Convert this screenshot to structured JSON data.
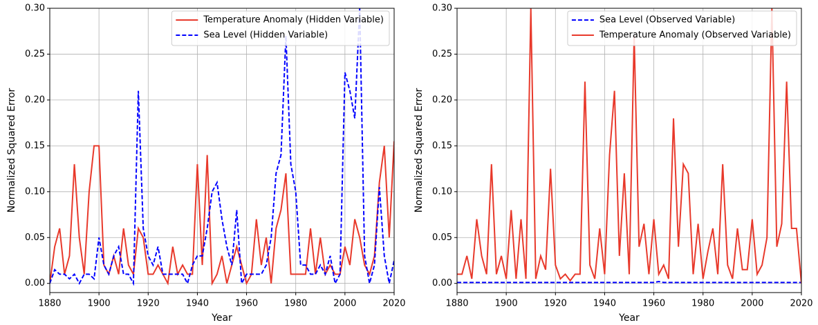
{
  "chart_data": [
    {
      "type": "line",
      "xlabel": "Year",
      "ylabel": "Normalized Squared Error",
      "x": [
        1880,
        1882,
        1884,
        1886,
        1888,
        1890,
        1892,
        1894,
        1896,
        1898,
        1900,
        1902,
        1904,
        1906,
        1908,
        1910,
        1912,
        1914,
        1916,
        1918,
        1920,
        1922,
        1924,
        1926,
        1928,
        1930,
        1932,
        1934,
        1936,
        1938,
        1940,
        1942,
        1944,
        1946,
        1948,
        1950,
        1952,
        1954,
        1956,
        1958,
        1960,
        1962,
        1964,
        1966,
        1968,
        1970,
        1972,
        1974,
        1976,
        1978,
        1980,
        1982,
        1984,
        1986,
        1988,
        1990,
        1992,
        1994,
        1996,
        1998,
        2000,
        2002,
        2004,
        2006,
        2008,
        2010,
        2012,
        2014,
        2016,
        2018,
        2020
      ],
      "xlim": [
        1880,
        2020
      ],
      "xticks": [
        1880,
        1900,
        1920,
        1940,
        1960,
        1980,
        2000,
        2020
      ],
      "ylim": [
        -0.01,
        0.3
      ],
      "yticks": [
        {
          "value": 0,
          "label": "0.00"
        },
        {
          "value": 0.05,
          "label": "0.05"
        },
        {
          "value": 0.1,
          "label": "0.10"
        },
        {
          "value": 0.15,
          "label": "0.15"
        },
        {
          "value": 0.2,
          "label": "0.20"
        },
        {
          "value": 0.25,
          "label": "0.25"
        },
        {
          "value": 0.3,
          "label": "0.30"
        }
      ],
      "grid": true,
      "legend": "upper right",
      "series": [
        {
          "name": "Temperature Anomaly (Hidden Variable)",
          "color": "#e8392b",
          "style": "solid",
          "values": [
            0.0,
            0.04,
            0.06,
            0.01,
            0.03,
            0.13,
            0.05,
            0.01,
            0.1,
            0.15,
            0.15,
            0.02,
            0.01,
            0.03,
            0.01,
            0.06,
            0.02,
            0.01,
            0.06,
            0.05,
            0.01,
            0.01,
            0.02,
            0.01,
            0.0,
            0.04,
            0.01,
            0.02,
            0.01,
            0.01,
            0.13,
            0.02,
            0.14,
            0.0,
            0.01,
            0.03,
            0.0,
            0.02,
            0.04,
            0.02,
            0.0,
            0.01,
            0.07,
            0.02,
            0.05,
            0.0,
            0.06,
            0.08,
            0.12,
            0.01,
            0.01,
            0.01,
            0.01,
            0.06,
            0.01,
            0.05,
            0.01,
            0.02,
            0.01,
            0.01,
            0.04,
            0.02,
            0.07,
            0.05,
            0.02,
            0.01,
            0.03,
            0.11,
            0.15,
            0.05,
            0.155
          ]
        },
        {
          "name": "Sea Level (Hidden Variable)",
          "color": "#0000ff",
          "style": "dashed",
          "values": [
            0.0,
            0.015,
            0.01,
            0.01,
            0.005,
            0.01,
            0.0,
            0.01,
            0.01,
            0.005,
            0.05,
            0.02,
            0.01,
            0.03,
            0.04,
            0.01,
            0.01,
            0.0,
            0.21,
            0.06,
            0.03,
            0.02,
            0.04,
            0.01,
            0.01,
            0.01,
            0.01,
            0.01,
            0.0,
            0.02,
            0.03,
            0.03,
            0.06,
            0.1,
            0.11,
            0.07,
            0.04,
            0.02,
            0.08,
            0.0,
            0.01,
            0.01,
            0.01,
            0.01,
            0.02,
            0.05,
            0.12,
            0.14,
            0.27,
            0.13,
            0.1,
            0.02,
            0.02,
            0.01,
            0.01,
            0.02,
            0.01,
            0.03,
            0.0,
            0.01,
            0.23,
            0.21,
            0.18,
            0.3,
            0.03,
            0.0,
            0.02,
            0.105,
            0.03,
            0.0,
            0.025
          ]
        }
      ]
    },
    {
      "type": "line",
      "xlabel": "Year",
      "ylabel": "Normalized Squared Error",
      "x": [
        1880,
        1882,
        1884,
        1886,
        1888,
        1890,
        1892,
        1894,
        1896,
        1898,
        1900,
        1902,
        1904,
        1906,
        1908,
        1910,
        1912,
        1914,
        1916,
        1918,
        1920,
        1922,
        1924,
        1926,
        1928,
        1930,
        1932,
        1934,
        1936,
        1938,
        1940,
        1942,
        1944,
        1946,
        1948,
        1950,
        1952,
        1954,
        1956,
        1958,
        1960,
        1962,
        1964,
        1966,
        1968,
        1970,
        1972,
        1974,
        1976,
        1978,
        1980,
        1982,
        1984,
        1986,
        1988,
        1990,
        1992,
        1994,
        1996,
        1998,
        2000,
        2002,
        2004,
        2006,
        2008,
        2010,
        2012,
        2014,
        2016,
        2018,
        2020
      ],
      "xlim": [
        1880,
        2020
      ],
      "xticks": [
        1880,
        1900,
        1920,
        1940,
        1960,
        1980,
        2000,
        2020
      ],
      "ylim": [
        -0.01,
        0.3
      ],
      "yticks": [
        {
          "value": 0,
          "label": "0.00"
        },
        {
          "value": 0.05,
          "label": "0.05"
        },
        {
          "value": 0.1,
          "label": "0.10"
        },
        {
          "value": 0.15,
          "label": "0.15"
        },
        {
          "value": 0.2,
          "label": "0.20"
        },
        {
          "value": 0.25,
          "label": "0.25"
        },
        {
          "value": 0.3,
          "label": "0.30"
        }
      ],
      "grid": true,
      "legend": "upper right",
      "series": [
        {
          "name": "Sea Level (Observed Variable)",
          "color": "#0000ff",
          "style": "dashed",
          "values": [
            0.001,
            0.001,
            0.001,
            0.001,
            0.001,
            0.001,
            0.001,
            0.001,
            0.001,
            0.001,
            0.001,
            0.001,
            0.001,
            0.001,
            0.001,
            0.001,
            0.001,
            0.001,
            0.001,
            0.001,
            0.001,
            0.001,
            0.001,
            0.001,
            0.001,
            0.001,
            0.001,
            0.001,
            0.001,
            0.001,
            0.001,
            0.001,
            0.001,
            0.001,
            0.001,
            0.001,
            0.001,
            0.001,
            0.001,
            0.001,
            0.001,
            0.002,
            0.001,
            0.001,
            0.001,
            0.001,
            0.001,
            0.001,
            0.001,
            0.001,
            0.001,
            0.001,
            0.001,
            0.001,
            0.001,
            0.001,
            0.001,
            0.001,
            0.001,
            0.001,
            0.001,
            0.001,
            0.001,
            0.001,
            0.001,
            0.001,
            0.001,
            0.001,
            0.001,
            0.001,
            0.001
          ]
        },
        {
          "name": "Temperature Anomaly (Observed Variable)",
          "color": "#e8392b",
          "style": "solid",
          "values": [
            0.01,
            0.01,
            0.03,
            0.005,
            0.07,
            0.03,
            0.01,
            0.13,
            0.01,
            0.03,
            0.005,
            0.08,
            0.005,
            0.07,
            0.005,
            0.3,
            0.005,
            0.03,
            0.015,
            0.125,
            0.02,
            0.005,
            0.01,
            0.003,
            0.01,
            0.01,
            0.22,
            0.02,
            0.005,
            0.06,
            0.01,
            0.14,
            0.21,
            0.03,
            0.12,
            0.01,
            0.27,
            0.04,
            0.065,
            0.01,
            0.07,
            0.01,
            0.02,
            0.005,
            0.18,
            0.04,
            0.13,
            0.12,
            0.01,
            0.065,
            0.005,
            0.035,
            0.06,
            0.01,
            0.13,
            0.02,
            0.005,
            0.06,
            0.015,
            0.015,
            0.07,
            0.01,
            0.02,
            0.05,
            0.3,
            0.04,
            0.065,
            0.22,
            0.06,
            0.06,
            0.0
          ]
        }
      ]
    }
  ]
}
